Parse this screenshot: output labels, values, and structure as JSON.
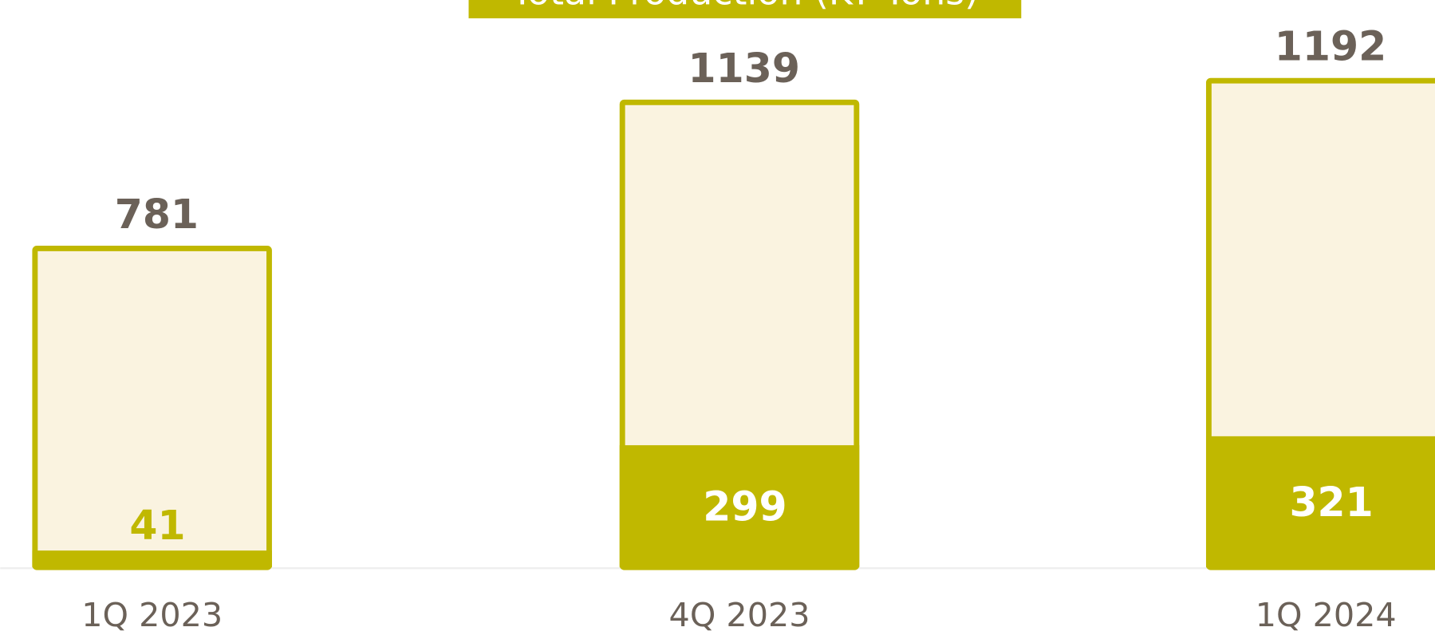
{
  "chart_data": {
    "type": "bar",
    "title": "Total Production (KT Tons)",
    "categories": [
      "1Q 2023",
      "4Q 2023",
      "1Q 2024"
    ],
    "series": [
      {
        "color": "#c0b800",
        "values": [
          781,
          1139,
          1192
        ]
      },
      {
        "color": "#c0b800",
        "values": [
          41,
          299,
          321
        ]
      }
    ],
    "ylim": [
      0,
      1300
    ]
  }
}
